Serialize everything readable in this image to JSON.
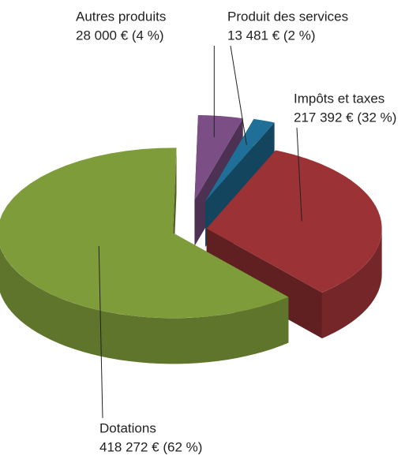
{
  "chart_data": {
    "type": "pie",
    "categories": [
      "Autres produits",
      "Produit des services",
      "Impôts et taxes",
      "Dotations"
    ],
    "values": [
      28000,
      13481,
      217392,
      418272
    ],
    "value_labels": [
      "28 000 € (4 %)",
      "13 481 € (2 %)",
      "217 392 € (32 %)",
      "418 272 € (62 %)"
    ],
    "colors": [
      "#7b4f86",
      "#1f6f98",
      "#9b3336",
      "#7f9c3b"
    ]
  }
}
